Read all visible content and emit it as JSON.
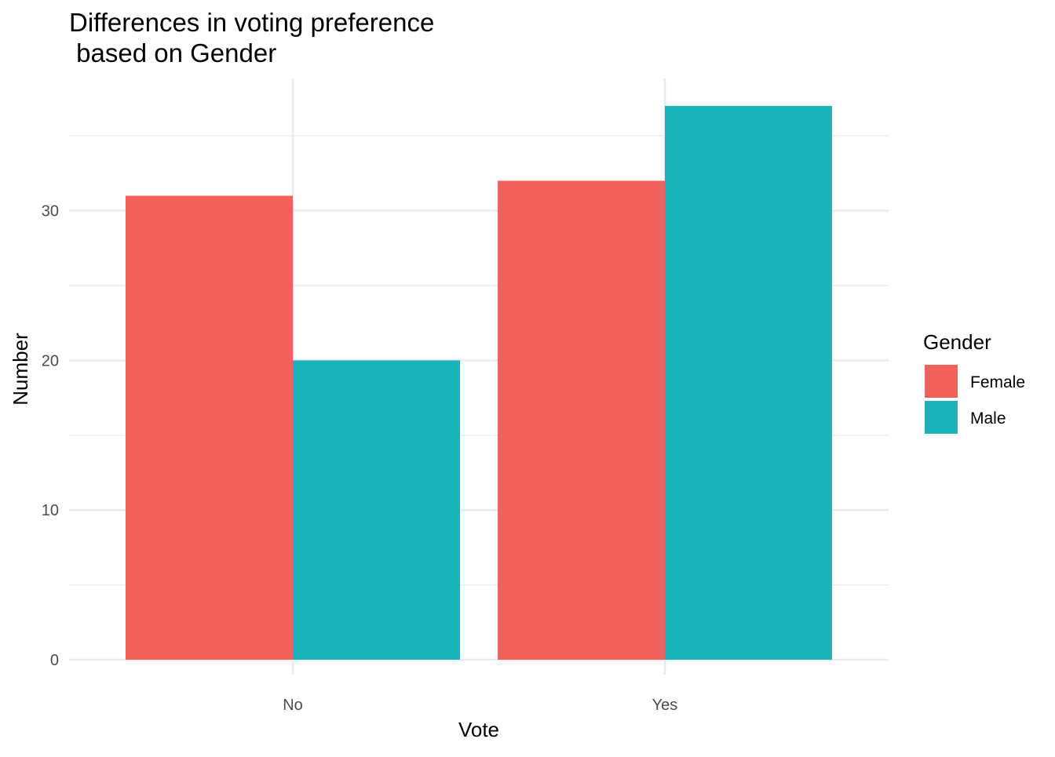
{
  "chart_data": {
    "type": "bar",
    "title": "Differences in voting preference\n based on Gender",
    "xlabel": "Vote",
    "ylabel": "Number",
    "categories": [
      "No",
      "Yes"
    ],
    "series": [
      {
        "name": "Female",
        "values": [
          31,
          32
        ],
        "color": "#F2615C"
      },
      {
        "name": "Male",
        "values": [
          20,
          37
        ],
        "color": "#1AB4B8"
      }
    ],
    "ylim": [
      0,
      38
    ],
    "yticks": [
      0,
      10,
      20,
      30
    ],
    "yticks_minor": [
      5,
      15,
      25,
      35
    ],
    "grid": true,
    "legend": {
      "title": "Gender",
      "position": "right"
    },
    "position": "dodge"
  }
}
